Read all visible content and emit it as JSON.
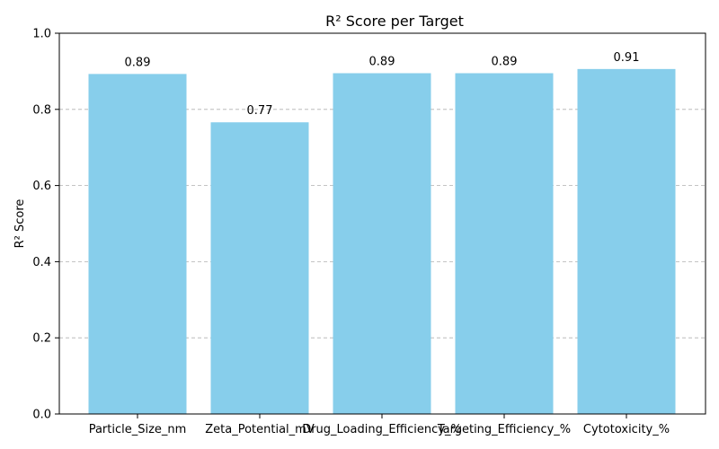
{
  "chart_data": {
    "type": "bar",
    "title": "R² Score per Target",
    "xlabel": "",
    "ylabel": "R² Score",
    "categories": [
      "Particle_Size_nm",
      "Zeta_Potential_mV",
      "Drug_Loading_Efficiency_%",
      "Targeting_Efficiency_%",
      "Cytotoxicity_%"
    ],
    "values": [
      0.893,
      0.766,
      0.895,
      0.895,
      0.906
    ],
    "data_labels": [
      "0.89",
      "0.77",
      "0.89",
      "0.89",
      "0.91"
    ],
    "ylim": [
      0,
      1.0
    ],
    "yticks": [
      0.0,
      0.2,
      0.4,
      0.6,
      0.8,
      1.0
    ],
    "ytick_labels": [
      "0.0",
      "0.2",
      "0.4",
      "0.6",
      "0.8",
      "1.0"
    ],
    "grid": "y-dashed",
    "bar_color": "#87ceeb"
  }
}
